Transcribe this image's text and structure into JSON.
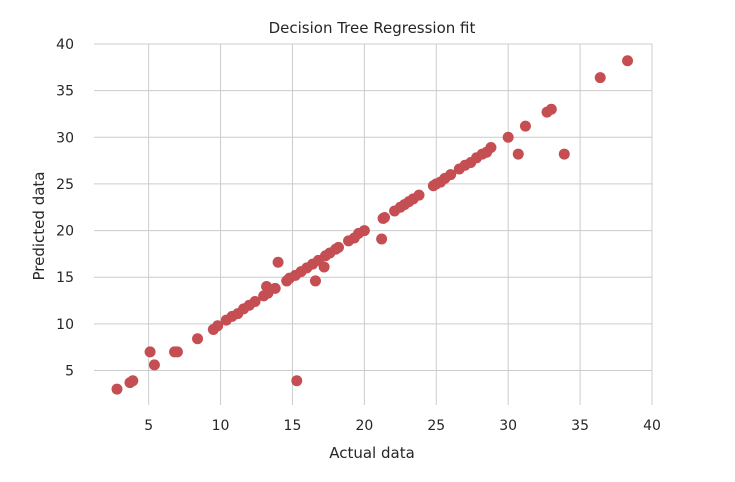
{
  "chart_data": {
    "type": "scatter",
    "title": "Decision Tree Regression fit",
    "xlabel": "Actual data",
    "ylabel": "Predicted data",
    "xlim": [
      1.2,
      40
    ],
    "ylim": [
      1.3,
      40
    ],
    "xticks": [
      5,
      10,
      15,
      20,
      25,
      30,
      35,
      40
    ],
    "yticks": [
      5,
      10,
      15,
      20,
      25,
      30,
      35,
      40
    ],
    "grid": true,
    "marker_color": "#c44e52",
    "points": [
      {
        "x": 2.8,
        "y": 3.0
      },
      {
        "x": 3.7,
        "y": 3.7
      },
      {
        "x": 3.9,
        "y": 3.9
      },
      {
        "x": 5.1,
        "y": 7.0
      },
      {
        "x": 5.4,
        "y": 5.6
      },
      {
        "x": 6.8,
        "y": 7.0
      },
      {
        "x": 7.0,
        "y": 7.0
      },
      {
        "x": 8.4,
        "y": 8.4
      },
      {
        "x": 9.5,
        "y": 9.4
      },
      {
        "x": 9.8,
        "y": 9.8
      },
      {
        "x": 10.4,
        "y": 10.4
      },
      {
        "x": 10.8,
        "y": 10.8
      },
      {
        "x": 11.2,
        "y": 11.1
      },
      {
        "x": 11.6,
        "y": 11.6
      },
      {
        "x": 12.0,
        "y": 12.0
      },
      {
        "x": 12.4,
        "y": 12.4
      },
      {
        "x": 13.0,
        "y": 13.0
      },
      {
        "x": 13.2,
        "y": 14.0
      },
      {
        "x": 13.3,
        "y": 13.3
      },
      {
        "x": 13.8,
        "y": 13.8
      },
      {
        "x": 14.0,
        "y": 16.6
      },
      {
        "x": 14.6,
        "y": 14.6
      },
      {
        "x": 14.8,
        "y": 14.9
      },
      {
        "x": 15.2,
        "y": 15.2
      },
      {
        "x": 15.3,
        "y": 3.9
      },
      {
        "x": 15.6,
        "y": 15.6
      },
      {
        "x": 16.0,
        "y": 16.0
      },
      {
        "x": 16.4,
        "y": 16.4
      },
      {
        "x": 16.6,
        "y": 14.6
      },
      {
        "x": 16.8,
        "y": 16.8
      },
      {
        "x": 17.2,
        "y": 16.1
      },
      {
        "x": 17.3,
        "y": 17.3
      },
      {
        "x": 17.6,
        "y": 17.6
      },
      {
        "x": 18.0,
        "y": 18.0
      },
      {
        "x": 18.2,
        "y": 18.2
      },
      {
        "x": 18.9,
        "y": 18.9
      },
      {
        "x": 19.3,
        "y": 19.2
      },
      {
        "x": 19.6,
        "y": 19.7
      },
      {
        "x": 20.0,
        "y": 20.0
      },
      {
        "x": 21.2,
        "y": 19.1
      },
      {
        "x": 21.3,
        "y": 21.3
      },
      {
        "x": 21.4,
        "y": 21.4
      },
      {
        "x": 22.1,
        "y": 22.1
      },
      {
        "x": 22.5,
        "y": 22.5
      },
      {
        "x": 22.8,
        "y": 22.8
      },
      {
        "x": 23.1,
        "y": 23.1
      },
      {
        "x": 23.4,
        "y": 23.4
      },
      {
        "x": 23.8,
        "y": 23.8
      },
      {
        "x": 24.8,
        "y": 24.8
      },
      {
        "x": 25.0,
        "y": 25.0
      },
      {
        "x": 25.3,
        "y": 25.2
      },
      {
        "x": 25.6,
        "y": 25.6
      },
      {
        "x": 26.0,
        "y": 26.0
      },
      {
        "x": 26.6,
        "y": 26.6
      },
      {
        "x": 27.0,
        "y": 27.0
      },
      {
        "x": 27.4,
        "y": 27.3
      },
      {
        "x": 27.8,
        "y": 27.8
      },
      {
        "x": 28.2,
        "y": 28.2
      },
      {
        "x": 28.5,
        "y": 28.4
      },
      {
        "x": 28.8,
        "y": 28.9
      },
      {
        "x": 30.0,
        "y": 30.0
      },
      {
        "x": 30.7,
        "y": 28.2
      },
      {
        "x": 31.2,
        "y": 31.2
      },
      {
        "x": 32.7,
        "y": 32.7
      },
      {
        "x": 33.0,
        "y": 33.0
      },
      {
        "x": 33.9,
        "y": 28.2
      },
      {
        "x": 36.4,
        "y": 36.4
      },
      {
        "x": 38.3,
        "y": 38.2
      }
    ]
  }
}
